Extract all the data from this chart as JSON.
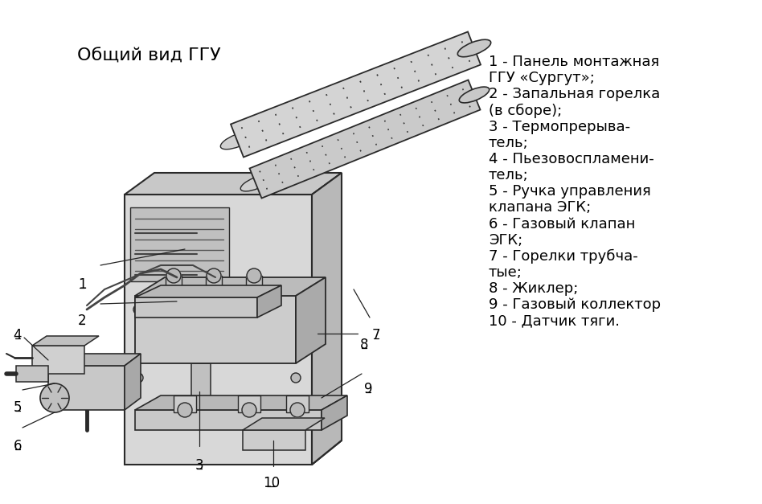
{
  "title": "Общий вид ГГУ",
  "bg_color": "#ffffff",
  "text_color": "#000000",
  "legend_items": [
    [
      "1 - Панель монтажная",
      "ГГУ «Сургут»;"
    ],
    [
      "2 - Запальная горелка",
      "(в сборе);"
    ],
    [
      "3 - Термопрерыва-",
      "тель;"
    ],
    [
      "4 - Пьезовоспламени-",
      "тель;"
    ],
    [
      "5 - Ручка управления",
      "клапана ЭГК;"
    ],
    [
      "6 - Газовый клапан",
      "ЭГК;"
    ],
    [
      "7 - Горелки трубча-",
      "тые;"
    ],
    [
      "8 - Жиклер;"
    ],
    [
      "9 - Газовый коллектор"
    ],
    [
      "10 - Датчик тяги."
    ]
  ],
  "title_fontsize": 16,
  "legend_fontsize": 13,
  "label_fontsize": 12
}
